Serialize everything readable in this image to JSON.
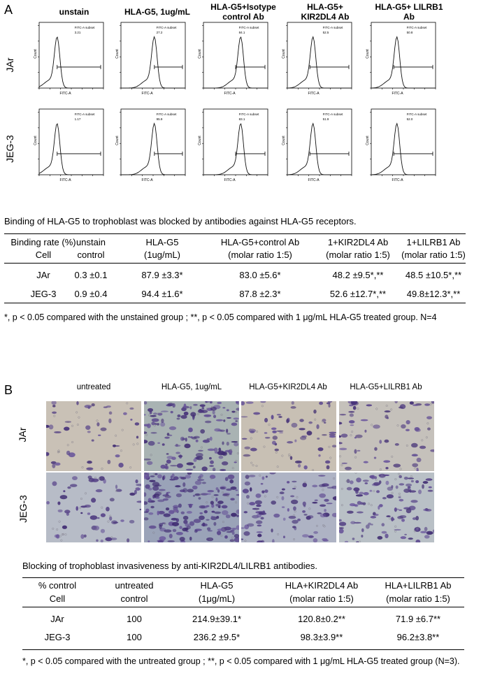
{
  "panel_a": {
    "letter": "A",
    "columns": [
      "unstain",
      "HLA-G5, 1ug/mL",
      "HLA-G5+Isotype control Ab",
      "HLA-G5+ KIR2DL4 Ab",
      "HLA-G5+ LILRB1 Ab"
    ],
    "rows": [
      "JAr",
      "JEG-3"
    ],
    "axis_x": "FITC-A",
    "axis_y": "Count",
    "gate_label": "FITC-A subset",
    "gate_values": [
      [
        "3.21",
        "27.2",
        "84.1",
        "52.5",
        "50.8"
      ],
      [
        "1.17",
        "95.9",
        "83.1",
        "51.9",
        "52.0"
      ]
    ],
    "caption": "Binding of HLA-G5 to trophoblast was blocked by antibodies against HLA-G5 receptors.",
    "table_head1": [
      "Binding rate (%)",
      "unstain",
      "HLA-G5",
      "HLA-G5+control  Ab",
      "1+KIR2DL4 Ab",
      "1+LILRB1 Ab"
    ],
    "table_head2": [
      "Cell",
      "control",
      "(1ug/mL)",
      "(molar ratio 1:5)",
      "(molar ratio 1:5)",
      "(molar ratio 1:5)"
    ],
    "table_rows": [
      [
        "JAr",
        "0.3 ±0.1",
        "87.9 ±3.3*",
        "83.0 ±5.6*",
        "48.2 ±9.5*,**",
        "48.5 ±10.5*,**"
      ],
      [
        "JEG-3",
        "0.9 ±0.4",
        "94.4 ±1.6*",
        "87.8 ±2.3*",
        "52.6 ±12.7*,**",
        "49.8±12.3*,**"
      ]
    ],
    "footnote": "*, p < 0.05 compared with the unstained group ; **, p < 0.05 compared with 1 μg/mL HLA-G5 treated group. N=4"
  },
  "panel_b": {
    "letter": "B",
    "columns": [
      "untreated",
      "HLA-G5, 1ug/mL",
      "HLA-G5+KIR2DL4 Ab",
      "HLA-G5+LILRB1 Ab"
    ],
    "rows": [
      "JAr",
      "JEG-3"
    ],
    "caption": "Blocking of trophoblast invasiveness by anti-KIR2DL4/LILRB1 antibodies.",
    "table_head1": [
      "% control",
      "untreated",
      "HLA-G5",
      "HLA+KIR2DL4 Ab",
      "HLA+LILRB1 Ab"
    ],
    "table_head2": [
      "Cell",
      "control",
      "(1μg/mL)",
      "(molar ratio 1:5)",
      "(molar ratio 1:5)"
    ],
    "table_rows": [
      [
        "JAr",
        "100",
        "214.9±39.1*",
        "120.8±0.2**",
        "71.9 ±6.7**"
      ],
      [
        "JEG-3",
        "100",
        "236.2 ±9.5*",
        "98.3±3.9**",
        "96.2±3.8**"
      ]
    ],
    "footnote": "*, p < 0.05 compared with the untreated group ; **, p < 0.05 compared with 1 μg/mL HLA-G5 treated group (N=3)."
  },
  "chart_data": [
    {
      "type": "table",
      "title": "Binding of HLA-G5 to trophoblast was blocked by antibodies against HLA-G5 receptors."
    },
    {
      "type": "table",
      "title": "Blocking of trophoblast invasiveness by anti-KIR2DL4/LILRB1 antibodies."
    }
  ]
}
